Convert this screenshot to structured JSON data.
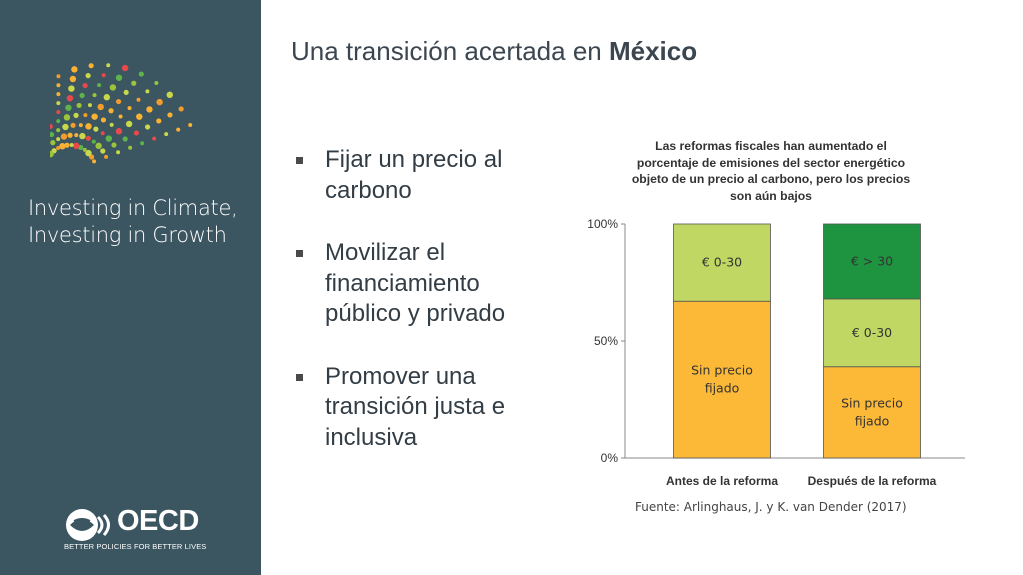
{
  "sidebar": {
    "tagline_line1": "Investing in Climate,",
    "tagline_line2": "Investing in Growth",
    "org_name": "OECD",
    "org_slogan": "BETTER POLICIES FOR BETTER LIVES"
  },
  "slide": {
    "title_prefix": "Una transición acertada en ",
    "title_bold": "México",
    "bullets": [
      "Fijar un precio al carbono",
      "Movilizar el financiamiento público y privado",
      "Promover una transición justa e inclusiva"
    ],
    "source": "Fuente: Arlinghaus, J. y K. van Dender (2017)"
  },
  "colors": {
    "sidebar_bg": "#3b5561",
    "no_price": "#fbb937",
    "low_price": "#c0d863",
    "high_price": "#1e9440"
  },
  "chart_data": {
    "type": "bar",
    "stacked": true,
    "title": "Las reformas fiscales han aumentado el porcentaje de emisiones del sector energético objeto de un precio al carbono, pero los precios son aún bajos",
    "categories": [
      "Antes de la reforma",
      "Después de la reforma"
    ],
    "yticks": [
      "0%",
      "50%",
      "100%"
    ],
    "ylim": [
      0,
      100
    ],
    "series": [
      {
        "name": "Sin precio fijado",
        "label_lines": [
          "Sin precio",
          "fijado"
        ],
        "values": [
          67,
          39
        ],
        "color": "#fbb937"
      },
      {
        "name": "€ 0-30",
        "label_lines": [
          "€ 0-30"
        ],
        "values": [
          33,
          29
        ],
        "color": "#c0d863"
      },
      {
        "name": "€ > 30",
        "label_lines": [
          "€ > 30"
        ],
        "values": [
          0,
          32
        ],
        "color": "#1e9440"
      }
    ]
  }
}
